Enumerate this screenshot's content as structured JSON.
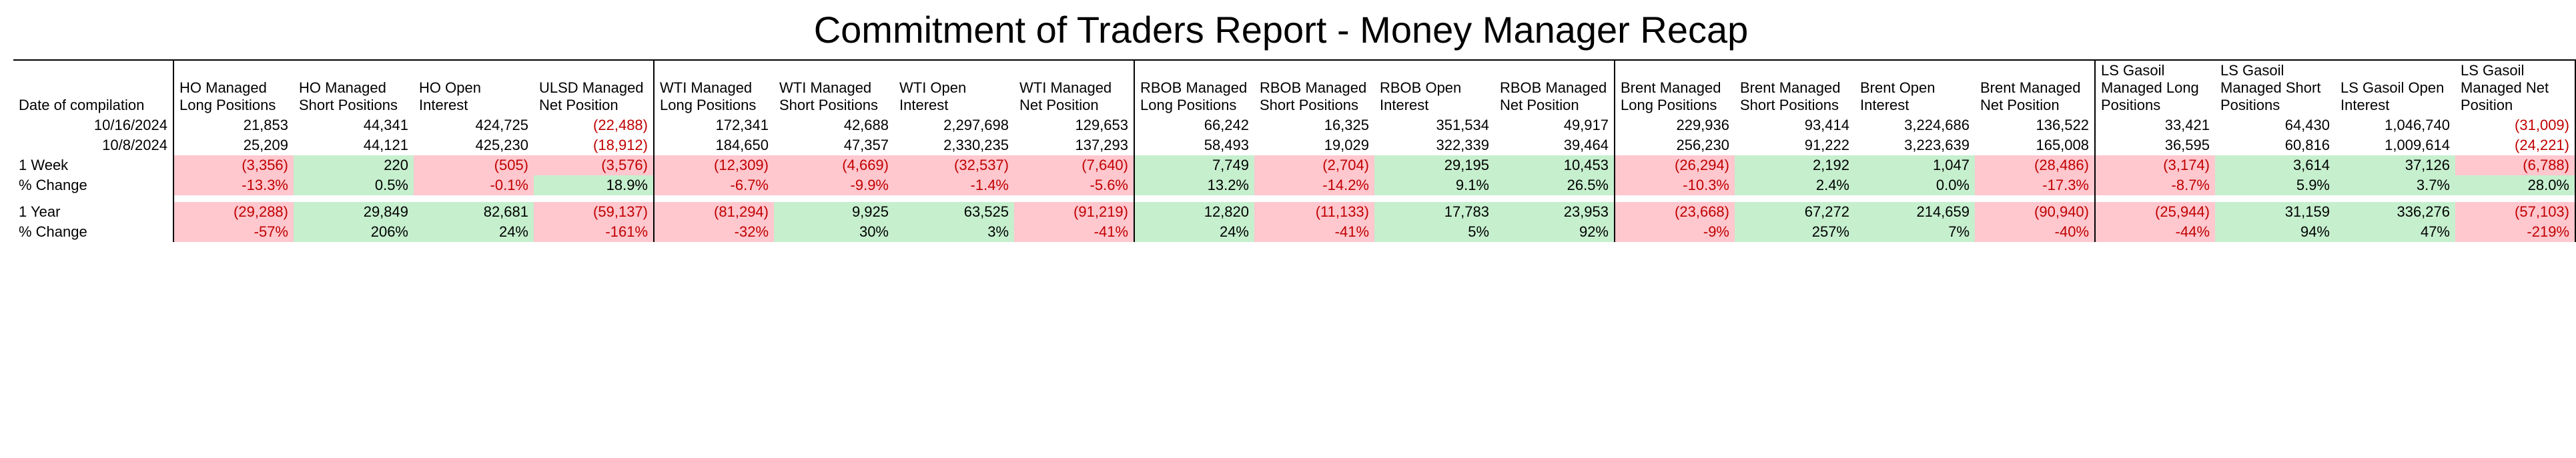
{
  "title": "Commitment of Traders Report - Money Manager Recap",
  "colors": {
    "positive_bg": "#c6efce",
    "negative_bg": "#ffc7ce",
    "negative_text": "#c00000",
    "border": "#000000",
    "background": "#ffffff"
  },
  "font": {
    "family": "Arial",
    "title_size_pt": 42,
    "body_size_pt": 16
  },
  "date_header": "Date of compilation",
  "products": [
    {
      "key": "HO",
      "columns": [
        {
          "key": "long",
          "label": "HO Managed Long Positions"
        },
        {
          "key": "short",
          "label": "HO Managed Short Positions"
        },
        {
          "key": "oi",
          "label": "HO Open Interest"
        },
        {
          "key": "net",
          "label": "ULSD Managed Net Position"
        }
      ]
    },
    {
      "key": "WTI",
      "columns": [
        {
          "key": "long",
          "label": "WTI Managed Long Positions"
        },
        {
          "key": "short",
          "label": "WTI Managed Short Positions"
        },
        {
          "key": "oi",
          "label": "WTI Open Interest"
        },
        {
          "key": "net",
          "label": "WTI Managed Net Position"
        }
      ]
    },
    {
      "key": "RBOB",
      "columns": [
        {
          "key": "long",
          "label": "RBOB Managed Long Positions"
        },
        {
          "key": "short",
          "label": "RBOB Managed Short Positions"
        },
        {
          "key": "oi",
          "label": "RBOB Open Interest"
        },
        {
          "key": "net",
          "label": "RBOB Managed Net Position"
        }
      ]
    },
    {
      "key": "Brent",
      "columns": [
        {
          "key": "long",
          "label": "Brent Managed Long Positions"
        },
        {
          "key": "short",
          "label": "Brent Managed Short Positions"
        },
        {
          "key": "oi",
          "label": "Brent Open Interest"
        },
        {
          "key": "net",
          "label": "Brent Managed Net Position"
        }
      ]
    },
    {
      "key": "LSGasoil",
      "columns": [
        {
          "key": "long",
          "label": "LS Gasoil Managed Long Positions"
        },
        {
          "key": "short",
          "label": "LS Gasoil Managed Short Positions"
        },
        {
          "key": "oi",
          "label": "LS Gasoil Open Interest"
        },
        {
          "key": "net",
          "label": "LS Gasoil Managed Net Position"
        }
      ]
    }
  ],
  "dates": [
    "10/16/2024",
    "10/8/2024"
  ],
  "values": {
    "10/16/2024": {
      "HO": {
        "long": 21853,
        "short": 44341,
        "oi": 424725,
        "net": -22488
      },
      "WTI": {
        "long": 172341,
        "short": 42688,
        "oi": 2297698,
        "net": 129653
      },
      "RBOB": {
        "long": 66242,
        "short": 16325,
        "oi": 351534,
        "net": 49917
      },
      "Brent": {
        "long": 229936,
        "short": 93414,
        "oi": 3224686,
        "net": 136522
      },
      "LSGasoil": {
        "long": 33421,
        "short": 64430,
        "oi": 1046740,
        "net": -31009
      }
    },
    "10/8/2024": {
      "HO": {
        "long": 25209,
        "short": 44121,
        "oi": 425230,
        "net": -18912
      },
      "WTI": {
        "long": 184650,
        "short": 47357,
        "oi": 2330235,
        "net": 137293
      },
      "RBOB": {
        "long": 58493,
        "short": 19029,
        "oi": 322339,
        "net": 39464
      },
      "Brent": {
        "long": 256230,
        "short": 91222,
        "oi": 3223639,
        "net": 165008
      },
      "LSGasoil": {
        "long": 36595,
        "short": 60816,
        "oi": 1009614,
        "net": -24221
      }
    }
  },
  "deltas": [
    {
      "label": "1 Week",
      "pct_label": "% Change",
      "pct_decimals": 1,
      "abs": {
        "HO": {
          "long": -3356,
          "short": 220,
          "oi": -505,
          "net": -3576
        },
        "WTI": {
          "long": -12309,
          "short": -4669,
          "oi": -32537,
          "net": -7640
        },
        "RBOB": {
          "long": 7749,
          "short": -2704,
          "oi": 29195,
          "net": 10453
        },
        "Brent": {
          "long": -26294,
          "short": 2192,
          "oi": 1047,
          "net": -28486
        },
        "LSGasoil": {
          "long": -3174,
          "short": 3614,
          "oi": 37126,
          "net": -6788
        }
      },
      "pct": {
        "HO": {
          "long": -13.3,
          "short": 0.5,
          "oi": -0.1,
          "net": 18.9
        },
        "WTI": {
          "long": -6.7,
          "short": -9.9,
          "oi": -1.4,
          "net": -5.6
        },
        "RBOB": {
          "long": 13.2,
          "short": -14.2,
          "oi": 9.1,
          "net": 26.5
        },
        "Brent": {
          "long": -10.3,
          "short": 2.4,
          "oi": 0.0,
          "net": -17.3
        },
        "LSGasoil": {
          "long": -8.7,
          "short": 5.9,
          "oi": 3.7,
          "net": 28.0
        }
      }
    },
    {
      "label": "1 Year",
      "pct_label": "% Change",
      "pct_decimals": 0,
      "abs": {
        "HO": {
          "long": -29288,
          "short": 29849,
          "oi": 82681,
          "net": -59137
        },
        "WTI": {
          "long": -81294,
          "short": 9925,
          "oi": 63525,
          "net": -91219
        },
        "RBOB": {
          "long": 12820,
          "short": -11133,
          "oi": 17783,
          "net": 23953
        },
        "Brent": {
          "long": -23668,
          "short": 67272,
          "oi": 214659,
          "net": -90940
        },
        "LSGasoil": {
          "long": -25944,
          "short": 31159,
          "oi": 336276,
          "net": -57103
        }
      },
      "pct": {
        "HO": {
          "long": -57,
          "short": 206,
          "oi": 24,
          "net": -161
        },
        "WTI": {
          "long": -32,
          "short": 30,
          "oi": 3,
          "net": -41
        },
        "RBOB": {
          "long": 24,
          "short": -41,
          "oi": 5,
          "net": 92
        },
        "Brent": {
          "long": -9,
          "short": 257,
          "oi": 7,
          "net": -40
        },
        "LSGasoil": {
          "long": -44,
          "short": 94,
          "oi": 47,
          "net": -219
        }
      }
    }
  ]
}
